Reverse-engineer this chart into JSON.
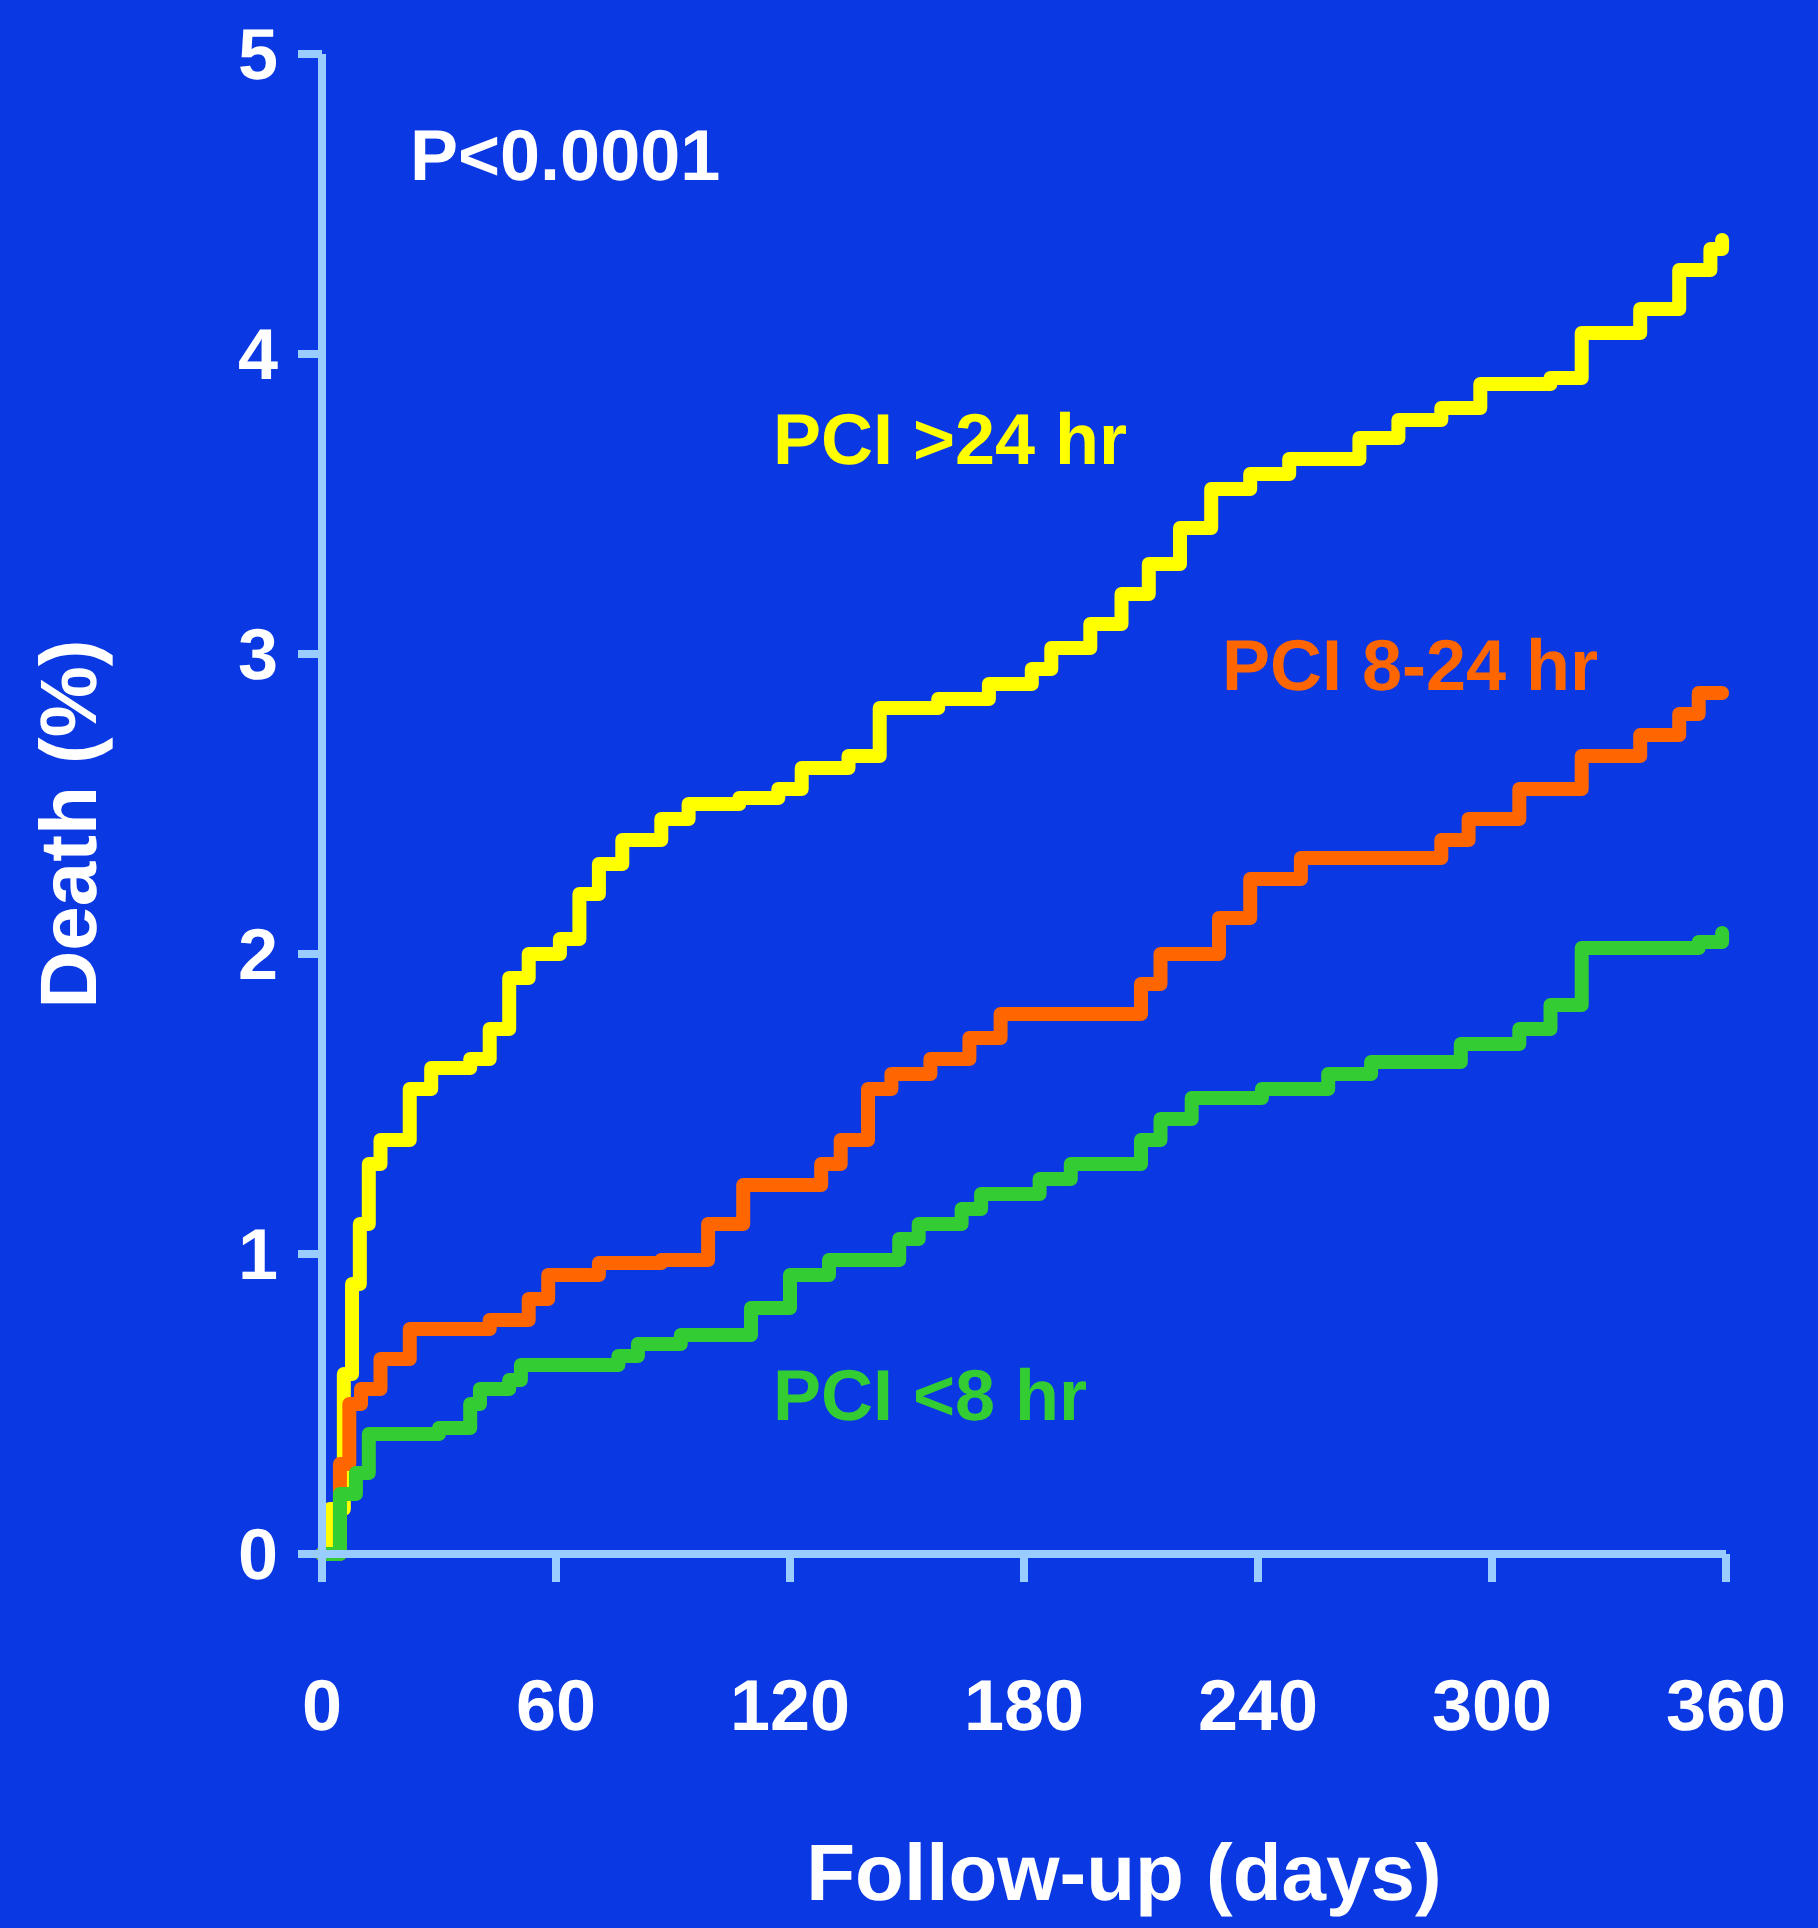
{
  "chart_data": {
    "type": "step",
    "xlabel": "Follow-up (days)",
    "ylabel": "Death (%)",
    "xlim": [
      0,
      360
    ],
    "xticks": [
      0,
      60,
      120,
      180,
      240,
      300,
      360
    ],
    "ylim": [
      0,
      5
    ],
    "yticks": [
      0,
      1,
      2,
      3,
      4,
      5
    ],
    "grid": false,
    "annotations": [
      "P<0.0001"
    ],
    "series": [
      {
        "name": "PCI >24 hr",
        "color": "#ffff00",
        "x": [
          0,
          2,
          5.6,
          7.7,
          9.7,
          12,
          15,
          22.5,
          28,
          38,
          43,
          48,
          53,
          61,
          66,
          71,
          77,
          87,
          94,
          107,
          117,
          123,
          135,
          143,
          158,
          171,
          182,
          187,
          197,
          205,
          212,
          220,
          228,
          238,
          248,
          266,
          276,
          287,
          297,
          315,
          323,
          338,
          348,
          356,
          359
        ],
        "values": [
          0,
          0.15,
          0.6,
          0.9,
          1.1,
          1.3,
          1.38,
          1.55,
          1.62,
          1.65,
          1.75,
          1.92,
          2.0,
          2.05,
          2.2,
          2.3,
          2.38,
          2.45,
          2.5,
          2.52,
          2.55,
          2.62,
          2.66,
          2.82,
          2.85,
          2.9,
          2.95,
          3.02,
          3.1,
          3.2,
          3.3,
          3.42,
          3.55,
          3.6,
          3.65,
          3.72,
          3.78,
          3.82,
          3.9,
          3.92,
          4.07,
          4.15,
          4.28,
          4.35,
          4.38
        ]
      },
      {
        "name": "PCI 8-24 hr",
        "color": "#ff6600",
        "x": [
          0,
          4.6,
          7,
          10,
          15,
          22.5,
          43,
          53,
          58,
          71,
          87,
          99,
          108,
          128,
          133,
          140,
          146,
          156,
          166,
          174,
          210,
          215,
          230,
          238,
          251,
          287,
          294,
          307,
          323,
          338,
          348,
          353,
          359
        ],
        "values": [
          0,
          0.3,
          0.5,
          0.55,
          0.65,
          0.75,
          0.78,
          0.85,
          0.93,
          0.97,
          0.98,
          1.1,
          1.23,
          1.3,
          1.38,
          1.55,
          1.6,
          1.65,
          1.72,
          1.8,
          1.9,
          2.0,
          2.12,
          2.25,
          2.32,
          2.38,
          2.45,
          2.55,
          2.66,
          2.73,
          2.8,
          2.87,
          2.87
        ]
      },
      {
        "name": "PCI <8 hr",
        "color": "#33cc33",
        "x": [
          0,
          4.6,
          8.7,
          12,
          30,
          38,
          40.5,
          48,
          51,
          76,
          81,
          92,
          110,
          120,
          130,
          148,
          153,
          164,
          169,
          184,
          192,
          210,
          215,
          223,
          241,
          258,
          269,
          292,
          307,
          315,
          323,
          353,
          359
        ],
        "values": [
          0,
          0.2,
          0.27,
          0.4,
          0.42,
          0.5,
          0.55,
          0.58,
          0.63,
          0.66,
          0.7,
          0.73,
          0.82,
          0.93,
          0.98,
          1.05,
          1.1,
          1.15,
          1.2,
          1.25,
          1.3,
          1.38,
          1.45,
          1.52,
          1.55,
          1.6,
          1.64,
          1.7,
          1.75,
          1.83,
          2.02,
          2.04,
          2.07
        ]
      }
    ]
  }
}
